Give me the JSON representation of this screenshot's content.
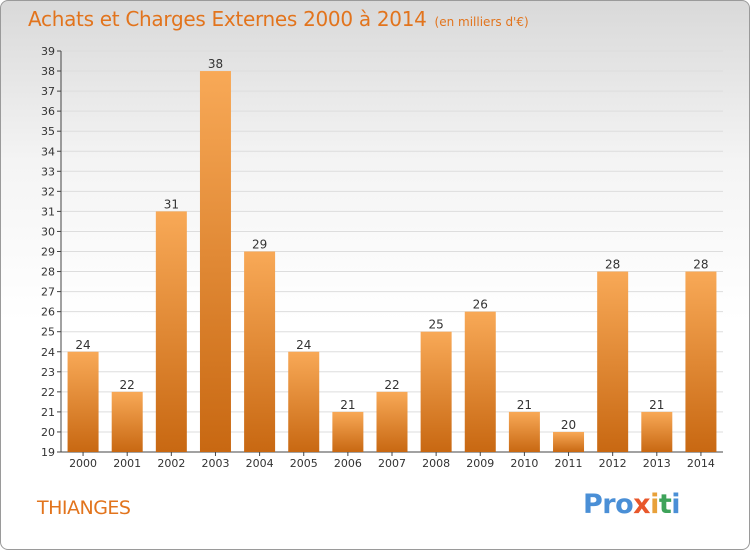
{
  "title": "Achats et Charges Externes 2000 à 2014",
  "unit_label": "(en milliers d'€)",
  "place": "THIANGES",
  "logo": {
    "p1": "Pro",
    "p2": "x",
    "p3": "i",
    "p4": "t",
    "p5": "i"
  },
  "colors": {
    "bar_top": "#f8a957",
    "bar_bottom": "#c86812",
    "title": "#e2741d",
    "grid": "#dddddd"
  },
  "chart_data": {
    "type": "bar",
    "title": "Achats et Charges Externes 2000 à 2014",
    "subtitle": "(en milliers d'€)",
    "categories": [
      "2000",
      "2001",
      "2002",
      "2003",
      "2004",
      "2005",
      "2006",
      "2007",
      "2008",
      "2009",
      "2010",
      "2011",
      "2012",
      "2013",
      "2014"
    ],
    "values": [
      24,
      22,
      31,
      38,
      29,
      24,
      21,
      22,
      25,
      26,
      21,
      20,
      28,
      21,
      28
    ],
    "ylim": [
      19,
      39
    ],
    "yticks": [
      19,
      20,
      21,
      22,
      23,
      24,
      25,
      26,
      27,
      28,
      29,
      30,
      31,
      32,
      33,
      34,
      35,
      36,
      37,
      38,
      39
    ],
    "xlabel": "",
    "ylabel": "",
    "grid": true
  }
}
